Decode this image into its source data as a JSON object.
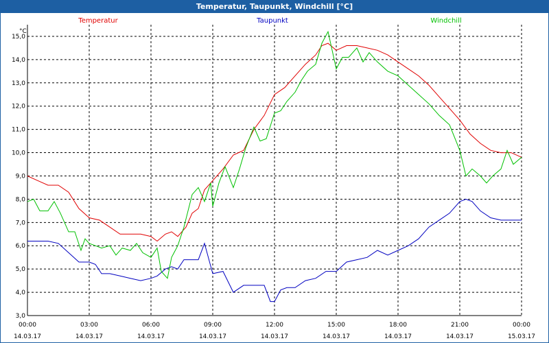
{
  "window": {
    "title": "Temperatur, Taupunkt, Windchill [°C]"
  },
  "chart_data": {
    "type": "line",
    "title": "Temperatur, Taupunkt, Windchill [°C]",
    "ylabel": "°C",
    "ylim": [
      3.0,
      15.5
    ],
    "xlim": [
      0,
      24
    ],
    "grid": true,
    "legend_position": "top",
    "y_ticks": [
      "3,0",
      "4,0",
      "5,0",
      "6,0",
      "7,0",
      "8,0",
      "9,0",
      "10,0",
      "11,0",
      "12,0",
      "13,0",
      "14,0",
      "15,0"
    ],
    "x_ticks": [
      {
        "time": "00:00",
        "date": "14.03.17"
      },
      {
        "time": "03:00",
        "date": "14.03.17"
      },
      {
        "time": "06:00",
        "date": "14.03.17"
      },
      {
        "time": "09:00",
        "date": "14.03.17"
      },
      {
        "time": "12:00",
        "date": "14.03.17"
      },
      {
        "time": "15:00",
        "date": "14.03.17"
      },
      {
        "time": "18:00",
        "date": "14.03.17"
      },
      {
        "time": "21:00",
        "date": "14.03.17"
      },
      {
        "time": "00:00",
        "date": "15.03.17"
      }
    ],
    "series": [
      {
        "name": "Temperatur",
        "color": "#e00000",
        "points": [
          [
            0,
            9.0
          ],
          [
            0.5,
            8.8
          ],
          [
            1,
            8.6
          ],
          [
            1.5,
            8.6
          ],
          [
            2,
            8.3
          ],
          [
            2.5,
            7.6
          ],
          [
            3,
            7.2
          ],
          [
            3.5,
            7.1
          ],
          [
            4,
            6.8
          ],
          [
            4.5,
            6.5
          ],
          [
            5,
            6.5
          ],
          [
            5.5,
            6.5
          ],
          [
            6,
            6.4
          ],
          [
            6.3,
            6.2
          ],
          [
            6.7,
            6.5
          ],
          [
            7,
            6.6
          ],
          [
            7.3,
            6.4
          ],
          [
            7.7,
            6.8
          ],
          [
            8,
            7.4
          ],
          [
            8.3,
            7.6
          ],
          [
            8.6,
            8.4
          ],
          [
            9,
            8.8
          ],
          [
            9.5,
            9.3
          ],
          [
            10,
            9.9
          ],
          [
            10.5,
            10.1
          ],
          [
            11,
            11.0
          ],
          [
            11.5,
            11.6
          ],
          [
            12,
            12.5
          ],
          [
            12.5,
            12.8
          ],
          [
            13,
            13.3
          ],
          [
            13.5,
            13.8
          ],
          [
            14,
            14.2
          ],
          [
            14.3,
            14.6
          ],
          [
            14.6,
            14.7
          ],
          [
            15,
            14.4
          ],
          [
            15.5,
            14.6
          ],
          [
            16,
            14.6
          ],
          [
            16.5,
            14.5
          ],
          [
            17,
            14.4
          ],
          [
            17.5,
            14.2
          ],
          [
            18,
            13.9
          ],
          [
            18.5,
            13.6
          ],
          [
            19,
            13.3
          ],
          [
            19.5,
            12.9
          ],
          [
            20,
            12.4
          ],
          [
            20.5,
            11.9
          ],
          [
            21,
            11.4
          ],
          [
            21.5,
            10.8
          ],
          [
            22,
            10.4
          ],
          [
            22.5,
            10.1
          ],
          [
            23,
            10.0
          ],
          [
            23.5,
            10.0
          ],
          [
            24,
            9.8
          ]
        ]
      },
      {
        "name": "Taupunkt",
        "color": "#0000c0",
        "points": [
          [
            0,
            6.2
          ],
          [
            0.5,
            6.2
          ],
          [
            1,
            6.2
          ],
          [
            1.5,
            6.1
          ],
          [
            2,
            5.7
          ],
          [
            2.5,
            5.3
          ],
          [
            3,
            5.3
          ],
          [
            3.3,
            5.2
          ],
          [
            3.6,
            4.8
          ],
          [
            4,
            4.8
          ],
          [
            4.5,
            4.7
          ],
          [
            5,
            4.6
          ],
          [
            5.5,
            4.5
          ],
          [
            6,
            4.6
          ],
          [
            6.3,
            4.7
          ],
          [
            6.7,
            5.0
          ],
          [
            7,
            5.1
          ],
          [
            7.3,
            5.0
          ],
          [
            7.6,
            5.4
          ],
          [
            8,
            5.4
          ],
          [
            8.3,
            5.4
          ],
          [
            8.6,
            6.1
          ],
          [
            9,
            4.8
          ],
          [
            9.5,
            4.9
          ],
          [
            10,
            4.0
          ],
          [
            10.5,
            4.3
          ],
          [
            11,
            4.3
          ],
          [
            11.5,
            4.3
          ],
          [
            11.8,
            3.6
          ],
          [
            12,
            3.6
          ],
          [
            12.3,
            4.1
          ],
          [
            12.6,
            4.2
          ],
          [
            13,
            4.2
          ],
          [
            13.5,
            4.5
          ],
          [
            14,
            4.6
          ],
          [
            14.5,
            4.9
          ],
          [
            15,
            4.9
          ],
          [
            15.5,
            5.3
          ],
          [
            16,
            5.4
          ],
          [
            16.5,
            5.5
          ],
          [
            17,
            5.8
          ],
          [
            17.5,
            5.6
          ],
          [
            18,
            5.8
          ],
          [
            18.5,
            6.0
          ],
          [
            19,
            6.3
          ],
          [
            19.5,
            6.8
          ],
          [
            20,
            7.1
          ],
          [
            20.5,
            7.4
          ],
          [
            21,
            7.9
          ],
          [
            21.3,
            8.0
          ],
          [
            21.6,
            7.9
          ],
          [
            22,
            7.5
          ],
          [
            22.5,
            7.2
          ],
          [
            23,
            7.1
          ],
          [
            23.5,
            7.1
          ],
          [
            24,
            7.1
          ]
        ]
      },
      {
        "name": "Windchill",
        "color": "#00c000",
        "points": [
          [
            0,
            7.9
          ],
          [
            0.3,
            8.0
          ],
          [
            0.6,
            7.5
          ],
          [
            1,
            7.5
          ],
          [
            1.3,
            7.9
          ],
          [
            1.6,
            7.4
          ],
          [
            2,
            6.6
          ],
          [
            2.3,
            6.6
          ],
          [
            2.6,
            5.8
          ],
          [
            2.8,
            6.3
          ],
          [
            3,
            6.1
          ],
          [
            3.3,
            6.0
          ],
          [
            3.6,
            5.9
          ],
          [
            4,
            6.0
          ],
          [
            4.3,
            5.6
          ],
          [
            4.6,
            5.9
          ],
          [
            5,
            5.8
          ],
          [
            5.3,
            6.1
          ],
          [
            5.6,
            5.7
          ],
          [
            6,
            5.5
          ],
          [
            6.3,
            5.9
          ],
          [
            6.5,
            4.9
          ],
          [
            6.8,
            4.6
          ],
          [
            7,
            5.5
          ],
          [
            7.3,
            6.0
          ],
          [
            7.6,
            6.8
          ],
          [
            8,
            8.2
          ],
          [
            8.3,
            8.5
          ],
          [
            8.6,
            7.9
          ],
          [
            8.9,
            8.7
          ],
          [
            9,
            7.7
          ],
          [
            9.3,
            8.7
          ],
          [
            9.6,
            9.4
          ],
          [
            10,
            8.5
          ],
          [
            10.3,
            9.3
          ],
          [
            10.6,
            10.2
          ],
          [
            11,
            11.1
          ],
          [
            11.3,
            10.5
          ],
          [
            11.6,
            10.6
          ],
          [
            12,
            11.7
          ],
          [
            12.3,
            11.8
          ],
          [
            12.6,
            12.2
          ],
          [
            13,
            12.6
          ],
          [
            13.3,
            13.1
          ],
          [
            13.6,
            13.5
          ],
          [
            14,
            13.8
          ],
          [
            14.3,
            14.7
          ],
          [
            14.6,
            15.2
          ],
          [
            15,
            13.6
          ],
          [
            15.3,
            14.1
          ],
          [
            15.6,
            14.1
          ],
          [
            16,
            14.5
          ],
          [
            16.3,
            13.9
          ],
          [
            16.6,
            14.3
          ],
          [
            17,
            13.9
          ],
          [
            17.5,
            13.5
          ],
          [
            18,
            13.3
          ],
          [
            18.5,
            12.9
          ],
          [
            19,
            12.5
          ],
          [
            19.5,
            12.1
          ],
          [
            20,
            11.6
          ],
          [
            20.5,
            11.2
          ],
          [
            21,
            10.1
          ],
          [
            21.3,
            9.0
          ],
          [
            21.6,
            9.3
          ],
          [
            22,
            9.0
          ],
          [
            22.3,
            8.7
          ],
          [
            22.6,
            9.0
          ],
          [
            23,
            9.3
          ],
          [
            23.3,
            10.1
          ],
          [
            23.6,
            9.5
          ],
          [
            24,
            9.8
          ]
        ]
      }
    ]
  }
}
